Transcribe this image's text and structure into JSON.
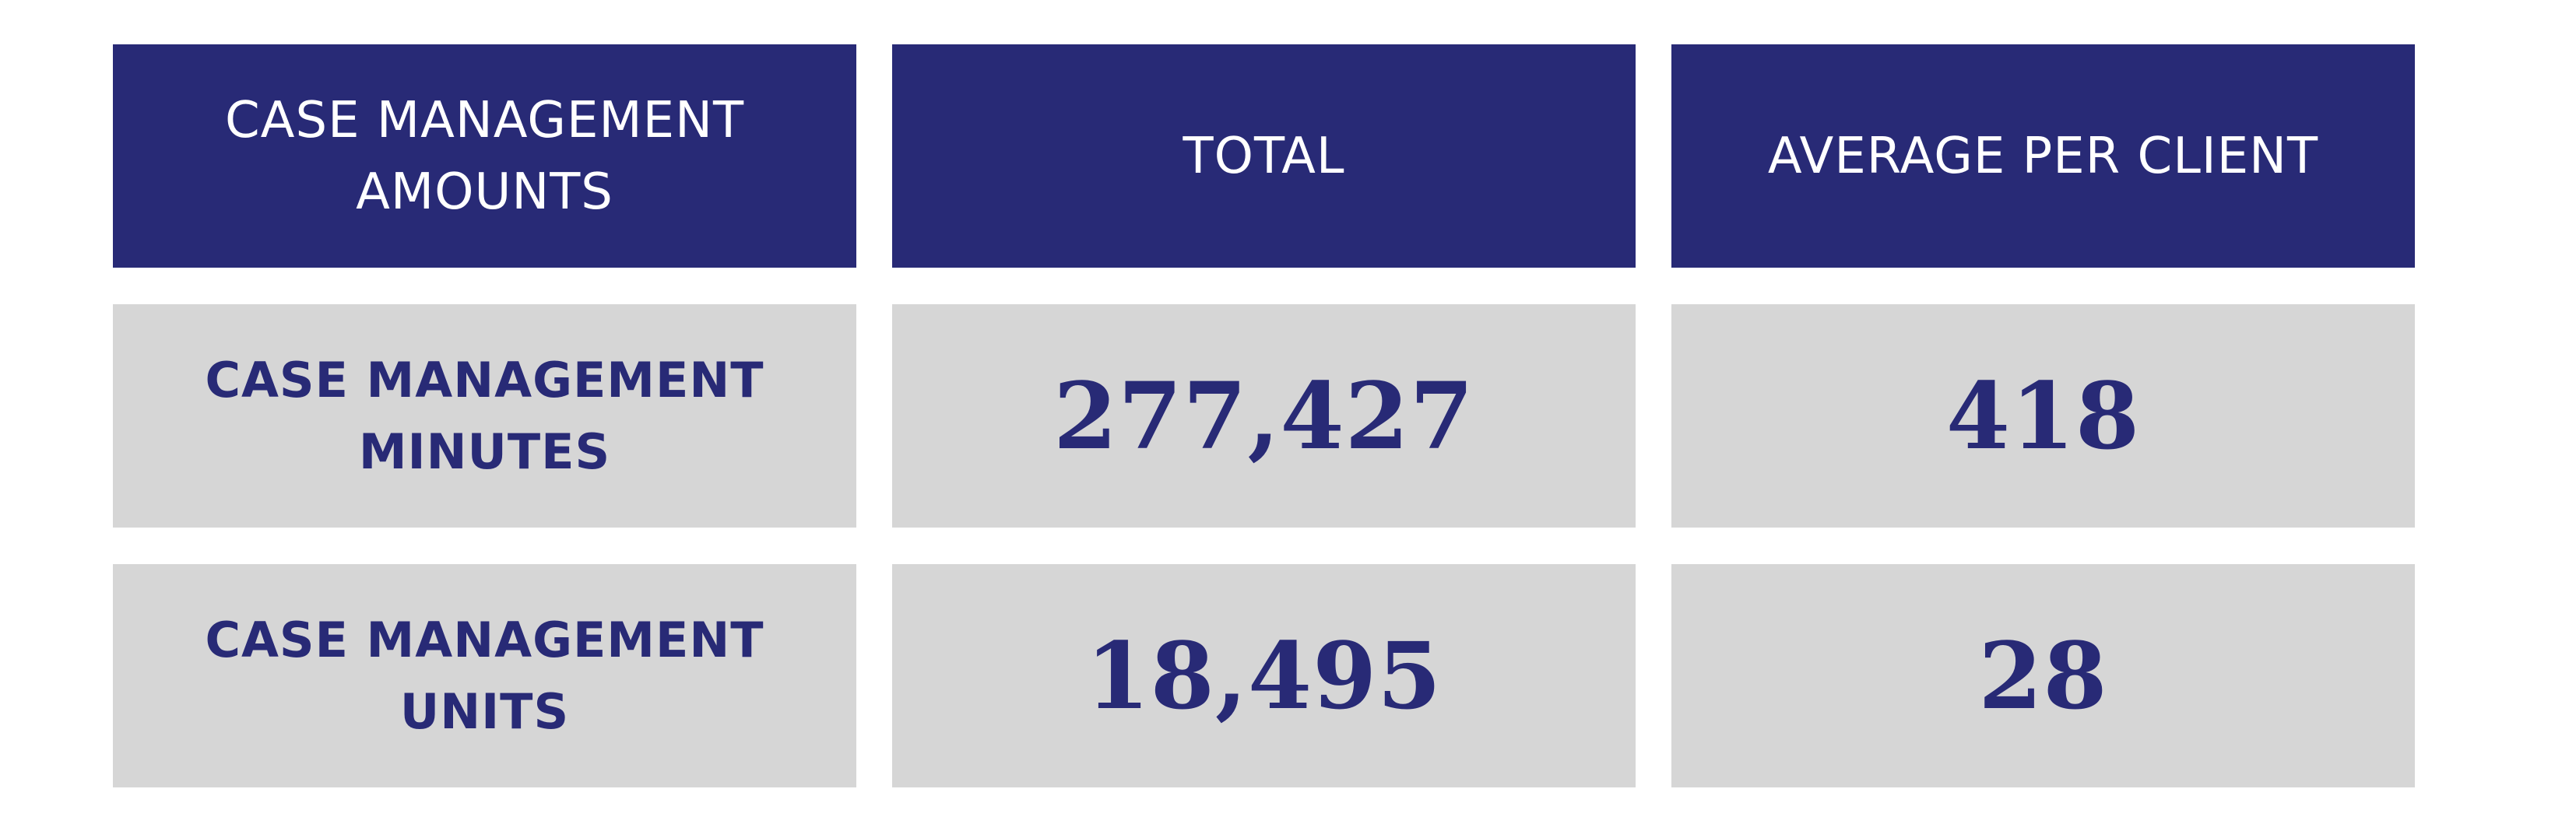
{
  "table": {
    "headers": [
      [
        "CASE MANAGEMENT",
        "AMOUNTS"
      ],
      "TOTAL",
      "AVERAGE PER CLIENT"
    ],
    "rows": [
      {
        "label": [
          "CASE MANAGEMENT",
          "MINUTES"
        ],
        "total": "277,427",
        "average": "418"
      },
      {
        "label": [
          "CASE MANAGEMENT",
          "UNITS"
        ],
        "total": "18,495",
        "average": "28"
      }
    ]
  },
  "colors": {
    "header_bg": "#282a76",
    "header_text": "#ffffff",
    "body_bg": "#d6d6d6",
    "body_text": "#282a76"
  }
}
